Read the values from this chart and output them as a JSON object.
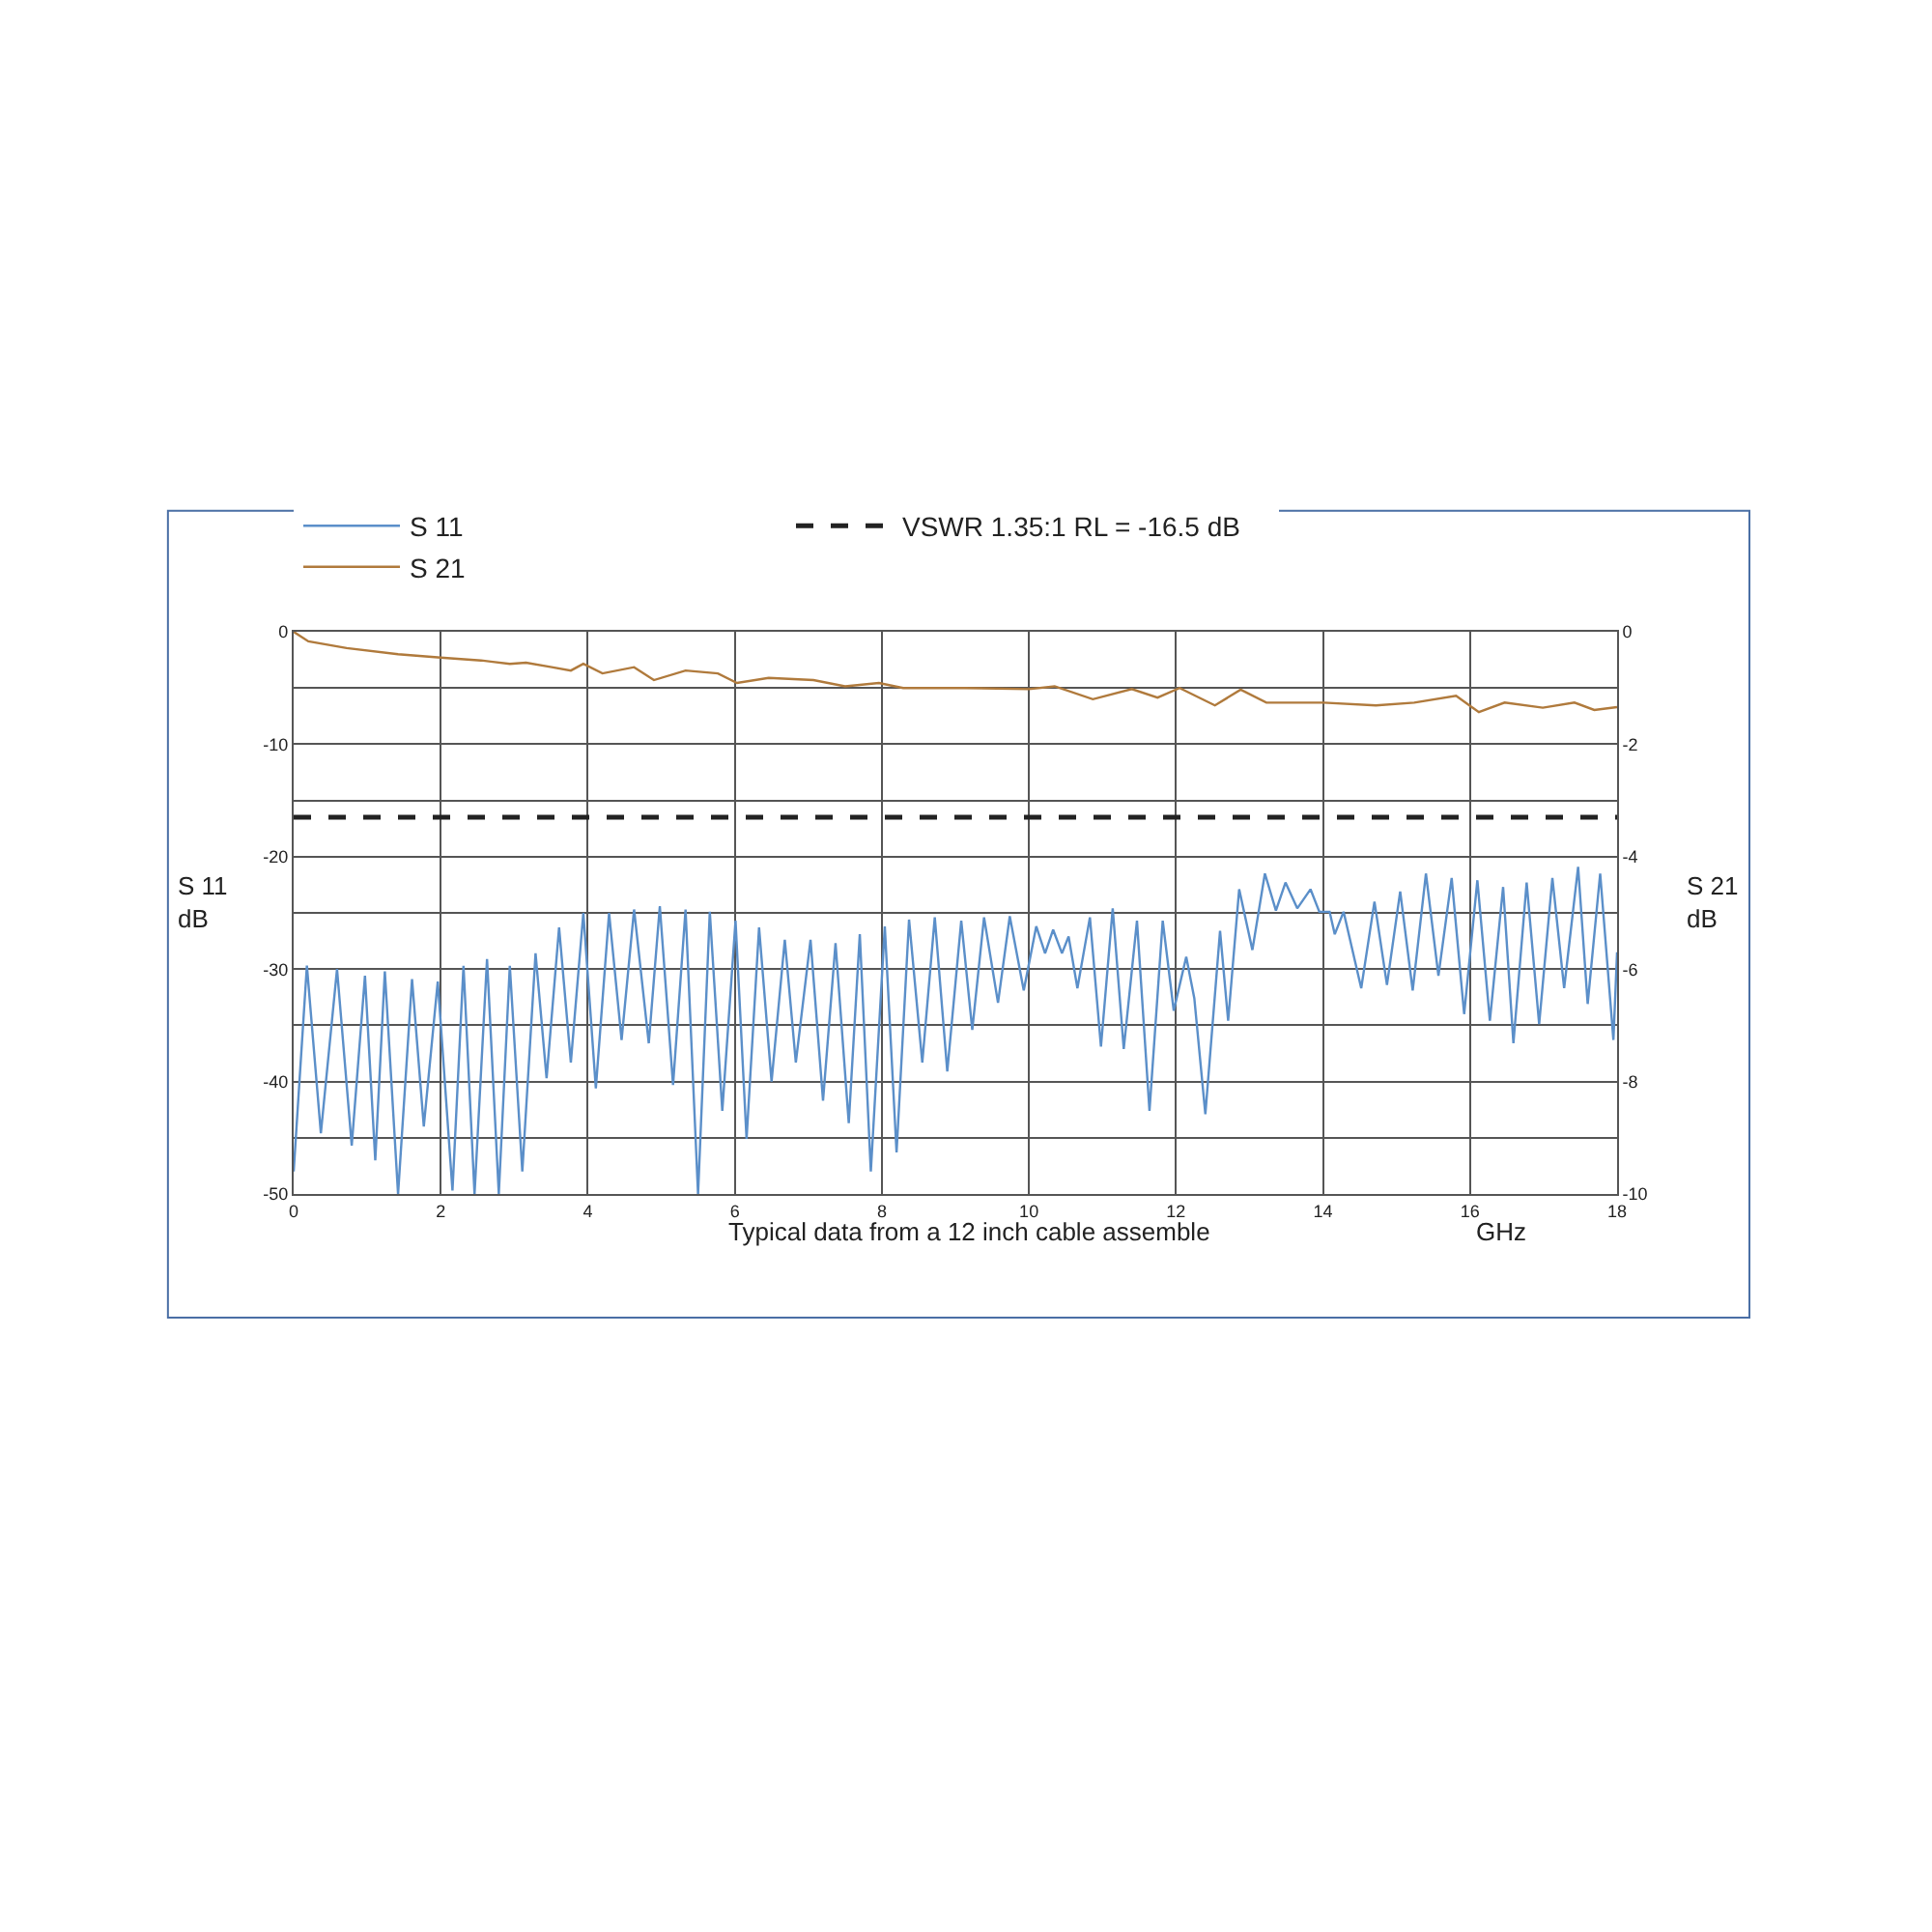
{
  "chart_data": {
    "type": "line",
    "xlabel": "GHz",
    "ylabel": "S 11\ndB",
    "y2label": "S 21\ndB",
    "annotations": [
      "Typical data from a 12 inch cable assemble"
    ],
    "xlim": [
      0,
      18
    ],
    "xticks": [
      0,
      2,
      4,
      6,
      8,
      10,
      12,
      14,
      16,
      18
    ],
    "ylim": [
      -50,
      0
    ],
    "yticks": [
      0,
      {
        "value": -5,
        "label": null
      },
      -10,
      {
        "value": -15,
        "label": null
      },
      -20,
      {
        "value": -25,
        "label": null
      },
      -30,
      {
        "value": -35,
        "label": null
      },
      -40,
      {
        "value": -45,
        "label": null
      },
      -50
    ],
    "y2lim": [
      -10,
      0
    ],
    "y2ticks": [
      0,
      -2,
      -4,
      -6,
      -8,
      -10
    ],
    "grid": true,
    "legend": "top",
    "marker": "none",
    "line_style": "solid",
    "ref_lines": [
      {
        "axis": "y",
        "value": -16.5,
        "label": "VSWR 1.35:1 RL = -16.5 dB",
        "color": "#222222",
        "line_style": "dashed"
      }
    ],
    "series": [
      {
        "name": "S 11",
        "color": "#5b8fc9",
        "x": [
          0,
          0.18,
          0.37,
          0.59,
          0.79,
          0.97,
          1.11,
          1.24,
          1.42,
          1.61,
          1.77,
          1.96,
          2.16,
          2.31,
          2.46,
          2.63,
          2.79,
          2.94,
          3.11,
          3.29,
          3.44,
          3.61,
          3.77,
          3.94,
          4.11,
          4.29,
          4.46,
          4.63,
          4.83,
          4.98,
          5.16,
          5.33,
          5.5,
          5.66,
          5.83,
          6.01,
          6.16,
          6.33,
          6.5,
          6.68,
          6.83,
          7.03,
          7.2,
          7.37,
          7.55,
          7.7,
          7.85,
          8.04,
          8.2,
          8.37,
          8.55,
          8.72,
          8.89,
          9.08,
          9.23,
          9.39,
          9.58,
          9.74,
          9.93,
          10.1,
          10.22,
          10.33,
          10.45,
          10.54,
          10.66,
          10.83,
          10.98,
          11.14,
          11.29,
          11.47,
          11.64,
          11.82,
          11.97,
          12.14,
          12.25,
          12.4,
          12.6,
          12.71,
          12.86,
          13.04,
          13.21,
          13.36,
          13.49,
          13.65,
          13.83,
          13.95,
          14.09,
          14.16,
          14.28,
          14.52,
          14.7,
          14.87,
          15.05,
          15.22,
          15.4,
          15.57,
          15.75,
          15.92,
          16.1,
          16.27,
          16.45,
          16.59,
          16.77,
          16.94,
          17.12,
          17.28,
          17.47,
          17.6,
          17.77,
          17.95,
          18
        ],
        "values": [
          -48,
          -29.7,
          -44.6,
          -30,
          -45.7,
          -30.6,
          -47,
          -30.2,
          -50,
          -30.9,
          -44,
          -31.1,
          -49.7,
          -29.7,
          -50,
          -29.1,
          -50,
          -29.7,
          -48,
          -28.6,
          -39.7,
          -26.3,
          -38.3,
          -25,
          -40.6,
          -25,
          -36.3,
          -24.7,
          -36.6,
          -24.4,
          -40.3,
          -24.7,
          -50,
          -24.9,
          -42.6,
          -25.7,
          -45.1,
          -26.3,
          -40,
          -27.4,
          -38.3,
          -27.4,
          -41.7,
          -27.7,
          -43.7,
          -26.9,
          -48,
          -26.2,
          -46.3,
          -25.6,
          -38.3,
          -25.4,
          -39.1,
          -25.7,
          -35.4,
          -25.4,
          -33,
          -25.3,
          -31.9,
          -26.2,
          -28.6,
          -26.5,
          -28.6,
          -27.1,
          -31.7,
          -25.4,
          -36.9,
          -24.6,
          -37.1,
          -25.7,
          -42.6,
          -25.7,
          -33.7,
          -28.9,
          -32.6,
          -42.9,
          -26.6,
          -34.6,
          -22.9,
          -28.3,
          -21.5,
          -24.8,
          -22.3,
          -24.6,
          -22.9,
          -24.9,
          -24.9,
          -26.9,
          -24.9,
          -31.7,
          -24,
          -31.4,
          -23.1,
          -31.9,
          -21.5,
          -30.6,
          -21.9,
          -34,
          -22.1,
          -34.6,
          -22.7,
          -36.6,
          -22.3,
          -34.9,
          -21.9,
          -31.7,
          -20.9,
          -33.1,
          -21.5,
          -36.3,
          -28.5
        ]
      },
      {
        "name": "S 21",
        "color": "#b07a3c",
        "axis": "y2",
        "x": [
          0,
          0.2,
          0.72,
          1.42,
          2,
          2.55,
          2.94,
          3.16,
          3.51,
          3.77,
          3.94,
          4.2,
          4.63,
          4.9,
          5.33,
          5.77,
          6.03,
          6.46,
          7.07,
          7.5,
          7.96,
          8.29,
          9.07,
          9.13,
          10,
          10.35,
          10.87,
          11.4,
          11.75,
          12.05,
          12.53,
          12.88,
          13.23,
          14.01,
          14.72,
          15.24,
          15.81,
          16.12,
          16.47,
          16.99,
          17.42,
          17.69,
          18
        ],
        "values": [
          0,
          -0.17,
          -0.29,
          -0.4,
          -0.46,
          -0.51,
          -0.57,
          -0.55,
          -0.63,
          -0.69,
          -0.57,
          -0.74,
          -0.63,
          -0.86,
          -0.69,
          -0.74,
          -0.91,
          -0.82,
          -0.86,
          -0.97,
          -0.91,
          -1.0,
          -1.0,
          -1.0,
          -1.02,
          -0.97,
          -1.2,
          -1.02,
          -1.17,
          -1.0,
          -1.31,
          -1.03,
          -1.26,
          -1.26,
          -1.31,
          -1.26,
          -1.14,
          -1.43,
          -1.26,
          -1.35,
          -1.26,
          -1.39,
          -1.34
        ]
      }
    ]
  }
}
